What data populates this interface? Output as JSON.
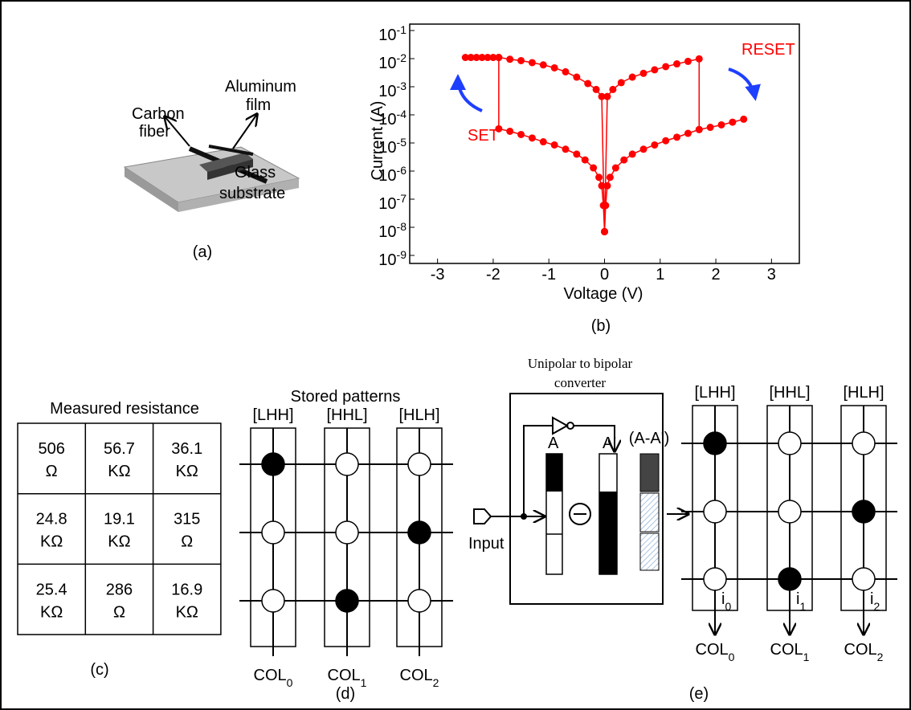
{
  "panel_a": {
    "carbon_fiber": [
      "Carbon",
      "fiber"
    ],
    "aluminum_film": [
      "Aluminum",
      "film"
    ],
    "glass_substrate": [
      "Glass",
      "substrate"
    ],
    "caption": "(a)"
  },
  "chart_data": {
    "type": "line",
    "ylabel": "Current (A)",
    "xlabel": "Voltage (V)",
    "caption": "(b)",
    "annotations": [
      "RESET",
      "SET"
    ],
    "yscale": "log",
    "xlim": [
      -3.5,
      3.5
    ],
    "xticks": [
      -3,
      -2,
      -1,
      0,
      1,
      2,
      3
    ],
    "ylim": [
      1e-09,
      0.1
    ],
    "yticks": [
      {
        "value": 1e-09,
        "label": "10-9"
      },
      {
        "value": 1e-08,
        "label": "10-8"
      },
      {
        "value": 1e-07,
        "label": "10-7"
      },
      {
        "value": 1e-06,
        "label": "10-6"
      },
      {
        "value": 1e-05,
        "label": "10-5"
      },
      {
        "value": 0.0001,
        "label": "10-4"
      },
      {
        "value": 0.001,
        "label": "10-3"
      },
      {
        "value": 0.01,
        "label": "10-2"
      },
      {
        "value": 0.1,
        "label": "10-1"
      }
    ],
    "series": [
      {
        "color": "#ff0000",
        "x": [
          0,
          -0.02,
          -0.05,
          -0.1,
          -0.2,
          -0.35,
          -0.5,
          -0.7,
          -0.9,
          -1.1,
          -1.3,
          -1.5,
          -1.7,
          -1.9,
          -1.9
        ],
        "values": [
          7e-09,
          6e-08,
          3e-07,
          6e-07,
          1.3e-06,
          2.5e-06,
          4e-06,
          6e-06,
          8.5e-06,
          1.1e-05,
          1.5e-05,
          2e-05,
          2.6e-05,
          3.2e-05,
          0.011
        ]
      },
      {
        "color": "#ff0000",
        "x": [
          -2.5,
          -2.4,
          -2.3,
          -2.2,
          -2.1,
          -2.0,
          -1.9,
          -1.7,
          -1.5,
          -1.3,
          -1.1,
          -0.9,
          -0.7,
          -0.5,
          -0.3,
          -0.15,
          -0.05,
          0
        ],
        "values": [
          0.011,
          0.011,
          0.011,
          0.011,
          0.011,
          0.011,
          0.011,
          0.0095,
          0.0085,
          0.0072,
          0.006,
          0.0047,
          0.0034,
          0.0022,
          0.0013,
          0.0008,
          0.00045,
          7e-09
        ]
      },
      {
        "color": "#ff0000",
        "x": [
          0,
          0.02,
          0.05,
          0.1,
          0.2,
          0.35,
          0.5,
          0.7,
          0.9,
          1.1,
          1.3,
          1.5,
          1.7,
          1.9,
          2.1,
          2.3,
          2.5
        ],
        "values": [
          7e-09,
          6e-08,
          3e-07,
          6e-07,
          1.3e-06,
          2.5e-06,
          4e-06,
          6e-06,
          8.5e-06,
          1.2e-05,
          1.6e-05,
          2.2e-05,
          3e-05,
          3.6e-05,
          4.4e-05,
          5.5e-05,
          7e-05
        ]
      },
      {
        "color": "#ff0000",
        "x": [
          1.7,
          1.7,
          1.5,
          1.3,
          1.1,
          0.9,
          0.7,
          0.5,
          0.3,
          0.15,
          0.05,
          0
        ],
        "values": [
          3e-05,
          0.0098,
          0.008,
          0.0065,
          0.0052,
          0.004,
          0.003,
          0.0022,
          0.0014,
          0.0008,
          0.00045,
          7e-09
        ]
      }
    ]
  },
  "panel_c": {
    "title": "Measured resistance",
    "caption": "(c)",
    "rows": [
      [
        [
          "506",
          "Ω"
        ],
        [
          "56.7",
          "KΩ"
        ],
        [
          "36.1",
          "KΩ"
        ]
      ],
      [
        [
          "24.8",
          "KΩ"
        ],
        [
          "19.1",
          "KΩ"
        ],
        [
          "315",
          "Ω"
        ]
      ],
      [
        [
          "25.4",
          "KΩ"
        ],
        [
          "286",
          "Ω"
        ],
        [
          "16.9",
          "KΩ"
        ]
      ]
    ]
  },
  "panel_d": {
    "title": "Stored patterns",
    "patterns": [
      "[LHH]",
      "[HHL]",
      "[HLH]"
    ],
    "columns": [
      "COL0",
      "COL1",
      "COL2"
    ],
    "caption": "(d)"
  },
  "panel_e": {
    "converter_title": [
      "Unipolar to bipolar",
      "converter"
    ],
    "input": "Input",
    "signals": [
      "A",
      "A'",
      "(A-A')"
    ],
    "patterns": [
      "[LHH]",
      "[HHL]",
      "[HLH]"
    ],
    "currents": [
      "i0",
      "i1",
      "i2"
    ],
    "columns": [
      "COL0",
      "COL1",
      "COL2"
    ],
    "caption": "(e)"
  }
}
